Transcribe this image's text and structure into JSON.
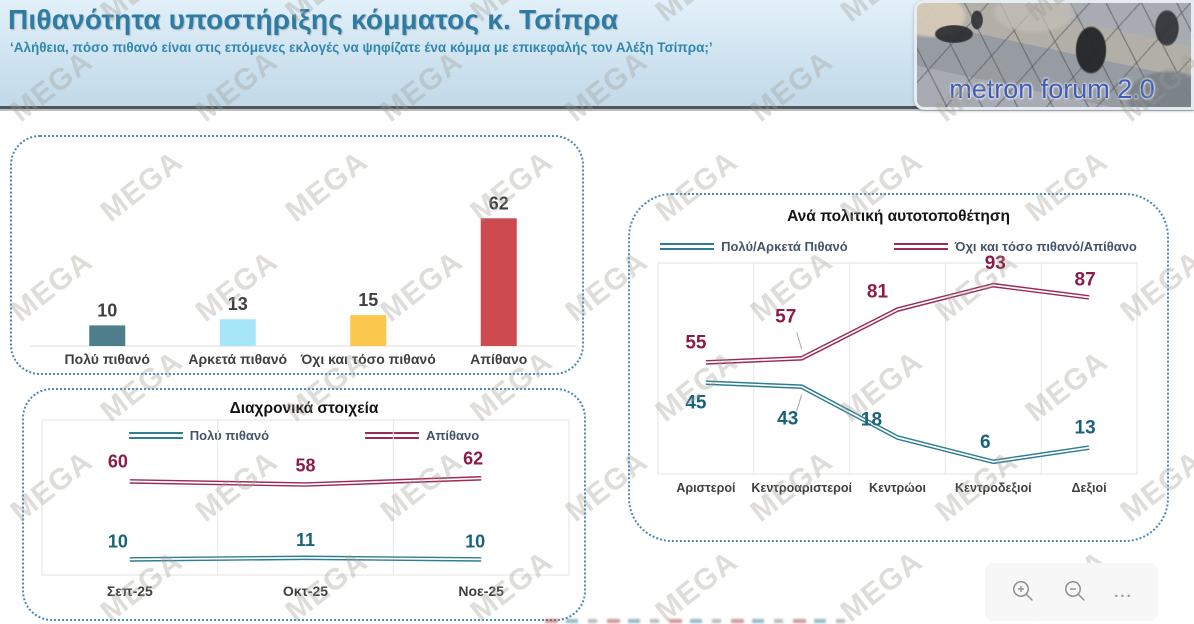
{
  "header": {
    "title": "Πιθανότητα υποστήριξης κόμματος κ. Τσίπρα",
    "subtitle": "‘Αλήθεια, πόσο πιθανό είναι στις επόμενες εκλογές να ψηφίζατε ένα κόμμα με επικεφαλής τον Αλέξη Τσίπρα;’",
    "logo_text": "metron forum 2.0"
  },
  "watermark": {
    "text": "MEGA"
  },
  "toolbar": {
    "icons": [
      "zoom-in-icon",
      "zoom-out-icon",
      "more-options-icon"
    ],
    "more_label": "..."
  },
  "colors": {
    "title_text": "#2e7ca3",
    "panel_border": "#4c8ab0",
    "teal_series": "#2e7d91",
    "maroon_series": "#9c2a59",
    "teal_label": "#17637b",
    "maroon_label": "#8a1c4a",
    "value_label": "#404040",
    "axis_label": "#3f3f3f",
    "gridline": "#e7e7e7"
  },
  "chart_data": [
    {
      "id": "likelihood_bars",
      "type": "bar",
      "title": "",
      "categories": [
        "Πολύ πιθανό",
        "Αρκετά πιθανό",
        "Όχι και τόσο πιθανό",
        "Απίθανο"
      ],
      "values": [
        10,
        13,
        15,
        62
      ],
      "bar_colors": [
        "#4e7d8c",
        "#a6e6f8",
        "#fbc84d",
        "#cd4b4f"
      ],
      "ylim": [
        0,
        70
      ],
      "grid": false
    },
    {
      "id": "timeline",
      "type": "line",
      "title": "Διαχρονικά στοιχεία",
      "categories": [
        "Σεπ-25",
        "Οκτ-25",
        "Νοε-25"
      ],
      "series": [
        {
          "name": "Πολύ πιθανό",
          "color": "#2e7d91",
          "label_color": "#17637b",
          "values": [
            10,
            11,
            10
          ]
        },
        {
          "name": "Απίθανο",
          "color": "#9c2a59",
          "label_color": "#8a1c4a",
          "values": [
            60,
            58,
            62
          ]
        }
      ],
      "ylim": [
        0,
        100
      ],
      "grid": true,
      "legend_position": "top"
    },
    {
      "id": "political",
      "type": "line",
      "title": "Ανά πολιτική αυτοτοποθέτηση",
      "categories": [
        "Αριστεροί",
        "Κεντροαριστεροί",
        "Κεντρώοι",
        "Κεντροδεξιοί",
        "Δεξιοί"
      ],
      "series": [
        {
          "name": "Πολύ/Αρκετά Πιθανό",
          "color": "#2e7d91",
          "label_color": "#17637b",
          "values": [
            45,
            43,
            18,
            6,
            13
          ]
        },
        {
          "name": "Όχι και τόσο πιθανό/Απίθανο",
          "color": "#9c2a59",
          "label_color": "#8a1c4a",
          "values": [
            55,
            57,
            81,
            93,
            87
          ]
        }
      ],
      "ylim": [
        0,
        100
      ],
      "grid": true,
      "legend_position": "top"
    }
  ]
}
